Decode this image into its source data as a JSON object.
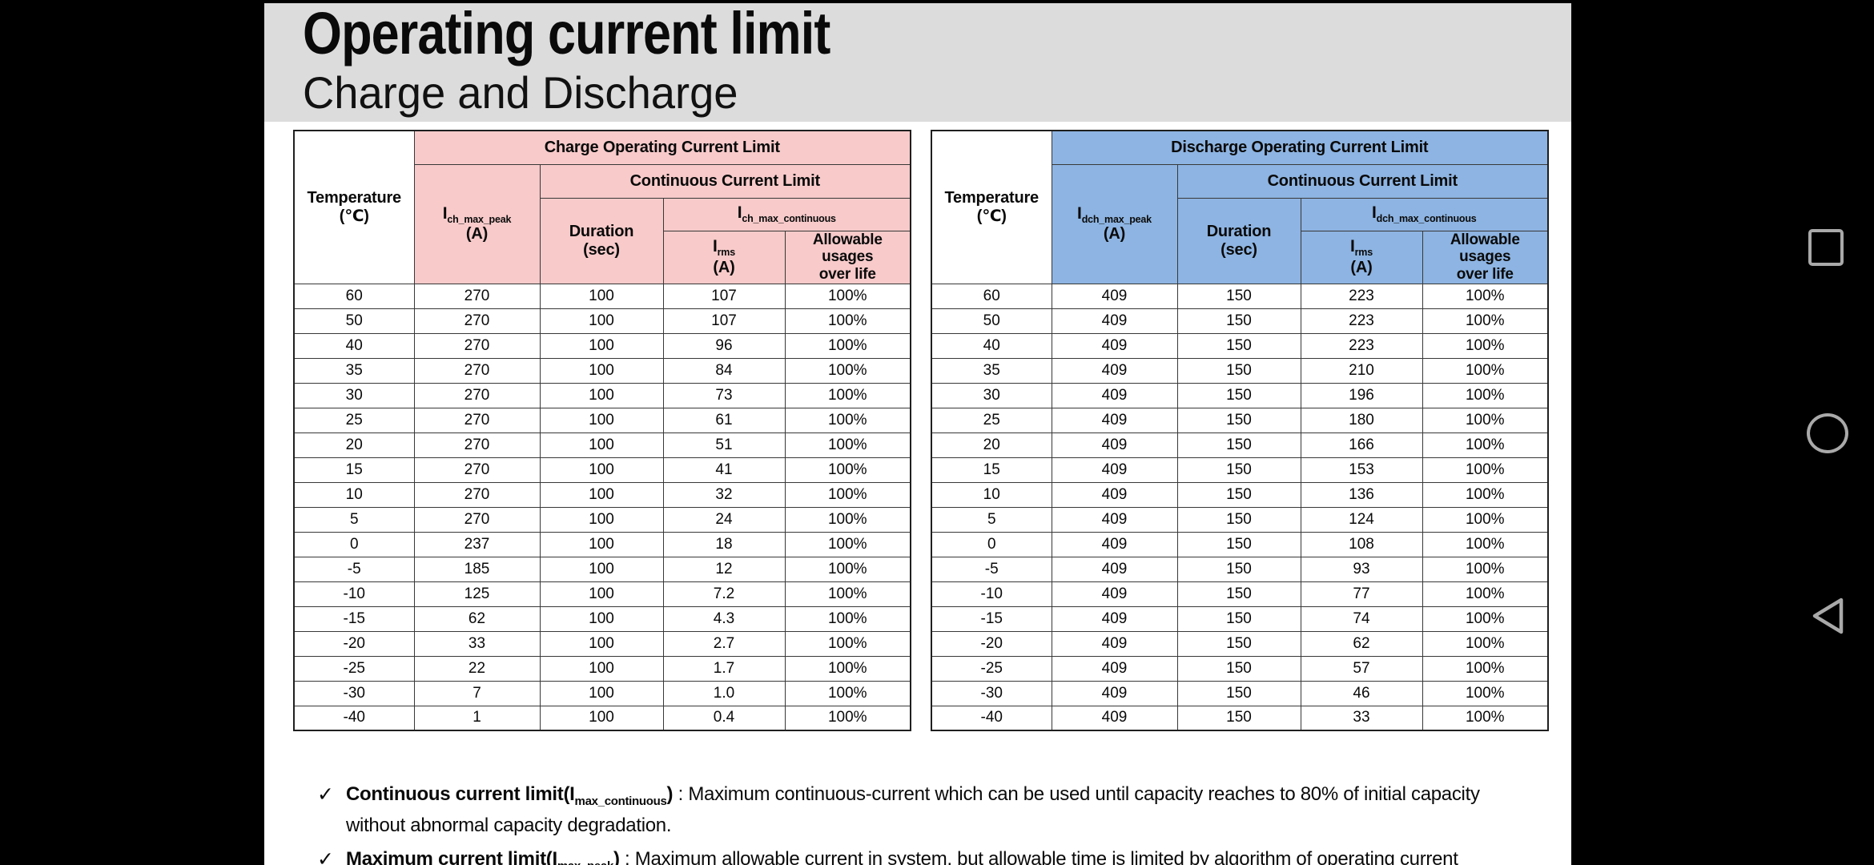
{
  "slide": {
    "title": "Operating current limit",
    "subtitle": "Charge and Discharge",
    "colors": {
      "charge_header": "#f8caca",
      "discharge_header": "#8db4e2",
      "title_band": "#dcdcdc"
    },
    "tables": [
      {
        "title": "Charge Operating Current Limit",
        "theme_color": "#f8caca",
        "headers": {
          "temperature": {
            "line1": "Temperature",
            "line2": "(℃)"
          },
          "peak": {
            "base": "I",
            "sub": "ch_max_peak",
            "unit": "(A)"
          },
          "continuous": "Continuous Current Limit",
          "duration": {
            "line1": "Duration",
            "line2": "(sec)"
          },
          "max_continuous": {
            "base": "I",
            "sub": "ch_max_continuous"
          },
          "rms": {
            "base": "I",
            "sub": "rms",
            "unit": "(A)"
          },
          "allowable": "Allowable usages over life"
        },
        "rows": [
          [
            "60",
            "270",
            "100",
            "107",
            "100%"
          ],
          [
            "50",
            "270",
            "100",
            "107",
            "100%"
          ],
          [
            "40",
            "270",
            "100",
            "96",
            "100%"
          ],
          [
            "35",
            "270",
            "100",
            "84",
            "100%"
          ],
          [
            "30",
            "270",
            "100",
            "73",
            "100%"
          ],
          [
            "25",
            "270",
            "100",
            "61",
            "100%"
          ],
          [
            "20",
            "270",
            "100",
            "51",
            "100%"
          ],
          [
            "15",
            "270",
            "100",
            "41",
            "100%"
          ],
          [
            "10",
            "270",
            "100",
            "32",
            "100%"
          ],
          [
            "5",
            "270",
            "100",
            "24",
            "100%"
          ],
          [
            "0",
            "237",
            "100",
            "18",
            "100%"
          ],
          [
            "-5",
            "185",
            "100",
            "12",
            "100%"
          ],
          [
            "-10",
            "125",
            "100",
            "7.2",
            "100%"
          ],
          [
            "-15",
            "62",
            "100",
            "4.3",
            "100%"
          ],
          [
            "-20",
            "33",
            "100",
            "2.7",
            "100%"
          ],
          [
            "-25",
            "22",
            "100",
            "1.7",
            "100%"
          ],
          [
            "-30",
            "7",
            "100",
            "1.0",
            "100%"
          ],
          [
            "-40",
            "1",
            "100",
            "0.4",
            "100%"
          ]
        ]
      },
      {
        "title": "Discharge Operating Current Limit",
        "theme_color": "#8db4e2",
        "headers": {
          "temperature": {
            "line1": "Temperature",
            "line2": "(℃)"
          },
          "peak": {
            "base": "I",
            "sub": "dch_max_peak",
            "unit": "(A)"
          },
          "continuous": "Continuous Current Limit",
          "duration": {
            "line1": "Duration",
            "line2": "(sec)"
          },
          "max_continuous": {
            "base": "I",
            "sub": "dch_max_continuous"
          },
          "rms": {
            "base": "I",
            "sub": "rms",
            "unit": "(A)"
          },
          "allowable": "Allowable usages over life"
        },
        "rows": [
          [
            "60",
            "409",
            "150",
            "223",
            "100%"
          ],
          [
            "50",
            "409",
            "150",
            "223",
            "100%"
          ],
          [
            "40",
            "409",
            "150",
            "223",
            "100%"
          ],
          [
            "35",
            "409",
            "150",
            "210",
            "100%"
          ],
          [
            "30",
            "409",
            "150",
            "196",
            "100%"
          ],
          [
            "25",
            "409",
            "150",
            "180",
            "100%"
          ],
          [
            "20",
            "409",
            "150",
            "166",
            "100%"
          ],
          [
            "15",
            "409",
            "150",
            "153",
            "100%"
          ],
          [
            "10",
            "409",
            "150",
            "136",
            "100%"
          ],
          [
            "5",
            "409",
            "150",
            "124",
            "100%"
          ],
          [
            "0",
            "409",
            "150",
            "108",
            "100%"
          ],
          [
            "-5",
            "409",
            "150",
            "93",
            "100%"
          ],
          [
            "-10",
            "409",
            "150",
            "77",
            "100%"
          ],
          [
            "-15",
            "409",
            "150",
            "74",
            "100%"
          ],
          [
            "-20",
            "409",
            "150",
            "62",
            "100%"
          ],
          [
            "-25",
            "409",
            "150",
            "57",
            "100%"
          ],
          [
            "-30",
            "409",
            "150",
            "46",
            "100%"
          ],
          [
            "-40",
            "409",
            "150",
            "33",
            "100%"
          ]
        ]
      }
    ],
    "notes": [
      {
        "check": "✓",
        "bold_prefix": "Continuous current limit(I",
        "subscript": "max_continuous",
        "bold_suffix": ")",
        "body": " : Maximum continuous-current which can be used until capacity reaches to 80% of initial capacity without abnormal capacity degradation."
      },
      {
        "check": "✓",
        "bold_prefix": "Maximum current limit(I",
        "subscript": "max_peak",
        "bold_suffix": ")",
        "body": " :  Maximum allowable current in system, but allowable time is limited by algorithm of operating current"
      }
    ]
  },
  "android_nav": {
    "recents": "square",
    "home": "circle",
    "back": "triangle-left",
    "icon_color": "#a9a9a9"
  }
}
